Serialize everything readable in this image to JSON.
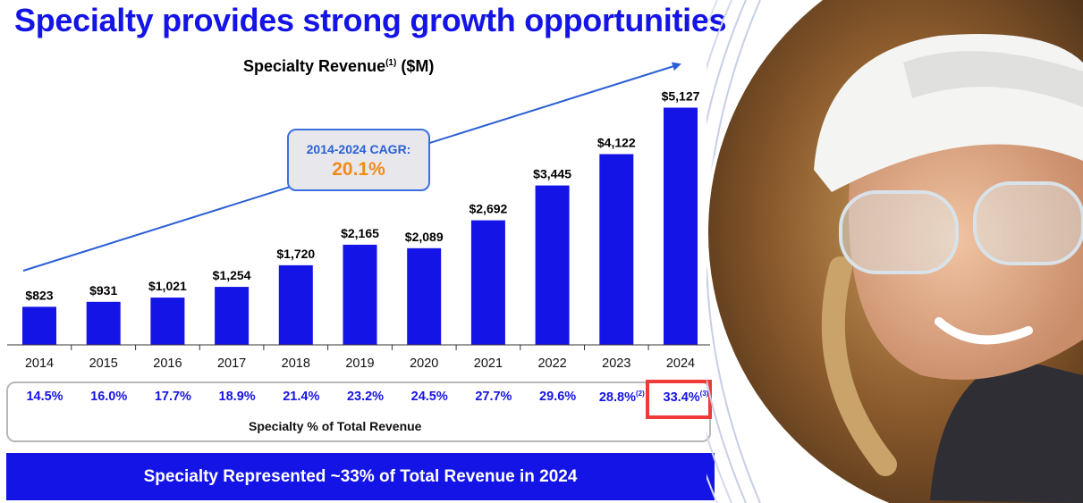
{
  "title": "Specialty provides strong growth opportunities",
  "chart_data": {
    "type": "bar",
    "title": "Specialty Revenue",
    "title_note": "(1)",
    "title_unit": "($M)",
    "categories": [
      "2014",
      "2015",
      "2016",
      "2017",
      "2018",
      "2019",
      "2020",
      "2021",
      "2022",
      "2023",
      "2024"
    ],
    "values": [
      823,
      931,
      1021,
      1254,
      1720,
      2165,
      2089,
      2692,
      3445,
      4122,
      5127
    ],
    "value_labels": [
      "$823",
      "$931",
      "$1,021",
      "$1,254",
      "$1,720",
      "$2,165",
      "$2,089",
      "$2,692",
      "$3,445",
      "$4,122",
      "$5,127"
    ],
    "ylim": [
      0,
      5600
    ],
    "bar_color": "#1414e6",
    "annotation": {
      "label": "2014-2024 CAGR:",
      "value": "20.1%"
    }
  },
  "specialty_pct": {
    "values": [
      {
        "value": "14.5%",
        "note": ""
      },
      {
        "value": "16.0%",
        "note": ""
      },
      {
        "value": "17.7%",
        "note": ""
      },
      {
        "value": "18.9%",
        "note": ""
      },
      {
        "value": "21.4%",
        "note": ""
      },
      {
        "value": "23.2%",
        "note": ""
      },
      {
        "value": "24.5%",
        "note": ""
      },
      {
        "value": "27.7%",
        "note": ""
      },
      {
        "value": "29.6%",
        "note": ""
      },
      {
        "value": "28.8%",
        "note": "(2)"
      },
      {
        "value": "33.4%",
        "note": "(3)"
      }
    ],
    "caption": "Specialty % of Total Revenue",
    "highlight_color": "#ee3b37"
  },
  "banner": "Specialty Represented ~33% of Total Revenue in 2024",
  "colors": {
    "accent": "#1414e6",
    "cagr_value": "#f28a1a",
    "cagr_label": "#2a5fd6"
  }
}
